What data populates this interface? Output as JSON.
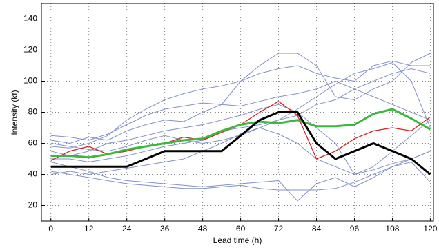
{
  "chart_data": {
    "type": "line",
    "x_label": "Lead time (h)",
    "y_label": "Intensity (kt)",
    "x": [
      0,
      6,
      12,
      18,
      24,
      30,
      36,
      42,
      48,
      54,
      60,
      66,
      72,
      78,
      84,
      90,
      96,
      102,
      108,
      114,
      120
    ],
    "xlim": [
      -3,
      121
    ],
    "ylim": [
      10,
      150
    ],
    "xticks": [
      0,
      12,
      24,
      36,
      48,
      60,
      72,
      84,
      96,
      108,
      120
    ],
    "yticks": [
      20,
      40,
      60,
      80,
      100,
      120,
      140
    ],
    "grid": true,
    "series": [
      {
        "color": "#8290c8",
        "values": [
          65,
          64,
          62,
          66,
          72,
          78,
          82,
          84,
          86,
          85,
          84,
          87,
          90,
          92,
          95,
          100,
          95,
          90,
          85,
          80,
          75
        ]
      },
      {
        "color": "#8290c8",
        "values": [
          58,
          57,
          60,
          65,
          75,
          82,
          88,
          92,
          95,
          97,
          100,
          110,
          118,
          118,
          110,
          90,
          88,
          95,
          100,
          112,
          118
        ]
      },
      {
        "color": "#8290c8",
        "values": [
          42,
          40,
          38,
          36,
          34,
          33,
          32,
          31,
          31,
          32,
          33,
          31,
          30,
          30,
          30,
          31,
          35,
          40,
          45,
          50,
          55
        ]
      },
      {
        "color": "#8290c8",
        "values": [
          48,
          45,
          42,
          38,
          36,
          35,
          34,
          33,
          32,
          33,
          34,
          35,
          36,
          23,
          34,
          38,
          32,
          38,
          45,
          48,
          35
        ]
      },
      {
        "color": "#8290c8",
        "values": [
          62,
          60,
          64,
          62,
          68,
          72,
          75,
          74,
          80,
          85,
          100,
          105,
          108,
          110,
          105,
          102,
          100,
          110,
          113,
          110,
          110
        ]
      },
      {
        "color": "#8290c8",
        "values": [
          55,
          52,
          55,
          60,
          62,
          65,
          68,
          70,
          72,
          75,
          78,
          82,
          85,
          80,
          70,
          60,
          40,
          45,
          55,
          65,
          75
        ]
      },
      {
        "color": "#8290c8",
        "values": [
          40,
          42,
          40,
          42,
          44,
          46,
          48,
          50,
          55,
          60,
          66,
          70,
          66,
          60,
          50,
          45,
          40,
          43,
          47,
          50,
          55
        ]
      },
      {
        "color": "#8290c8",
        "values": [
          50,
          50,
          48,
          50,
          52,
          55,
          58,
          60,
          62,
          68,
          70,
          72,
          75,
          78,
          85,
          88,
          95,
          100,
          105,
          108,
          105
        ]
      },
      {
        "color": "#8290c8",
        "values": [
          60,
          58,
          56,
          55,
          58,
          62,
          65,
          62,
          60,
          62,
          65,
          70,
          75,
          82,
          90,
          98,
          105,
          108,
          112,
          100,
          70
        ]
      },
      {
        "color": "#d62020",
        "values": [
          49,
          55,
          58,
          53,
          55,
          58,
          60,
          64,
          62,
          67,
          72,
          80,
          87,
          78,
          50,
          55,
          63,
          68,
          70,
          68,
          77
        ]
      },
      {
        "color": "#3cb83c",
        "values": [
          52,
          52,
          51,
          53,
          56,
          58,
          60,
          62,
          63,
          68,
          72,
          74,
          73,
          75,
          71,
          71,
          72,
          79,
          82,
          76,
          69
        ]
      },
      {
        "color": "#000000",
        "values": [
          45,
          45,
          45,
          45,
          45,
          50,
          55,
          55,
          55,
          55,
          65,
          75,
          80,
          80,
          60,
          50,
          55,
          60,
          55,
          50,
          40
        ]
      }
    ]
  }
}
